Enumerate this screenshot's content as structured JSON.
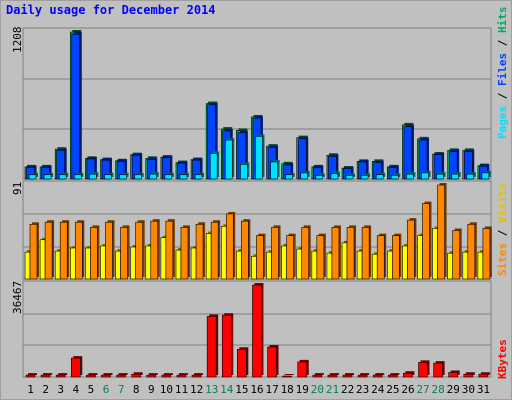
{
  "title": "Daily usage for December 2014",
  "colors": {
    "pages": "#0044ff",
    "files": "#00e0ff",
    "hits": "#00a860",
    "visits": "#ffff00",
    "sites": "#ff8800",
    "kbytes": "#ff0000",
    "weekend_day": "#00805c",
    "weekday": "#000000"
  },
  "chart_data": [
    {
      "type": "bar",
      "name_row": "hits-pages-files",
      "ymax_label": "1208",
      "ylim": [
        0,
        1208
      ],
      "legend": {
        "pages": "Pages",
        "sep1": " / ",
        "files": "Files",
        "sep2": " / ",
        "hits": "Hits"
      },
      "categories": [
        "1",
        "2",
        "3",
        "4",
        "5",
        "6",
        "7",
        "8",
        "9",
        "10",
        "11",
        "12",
        "13",
        "14",
        "15",
        "16",
        "17",
        "18",
        "19",
        "20",
        "21",
        "22",
        "23",
        "24",
        "25",
        "26",
        "27",
        "28",
        "29",
        "30",
        "31"
      ],
      "series": [
        {
          "key": "hits",
          "values": [
            100,
            100,
            245,
            1208,
            170,
            160,
            150,
            200,
            170,
            180,
            135,
            160,
            620,
            410,
            400,
            510,
            270,
            125,
            340,
            100,
            195,
            90,
            145,
            145,
            100,
            445,
            330,
            205,
            235,
            235,
            110
          ]
        },
        {
          "key": "pages",
          "values": [
            95,
            95,
            235,
            1190,
            165,
            155,
            145,
            195,
            160,
            175,
            130,
            155,
            610,
            395,
            380,
            500,
            260,
            115,
            330,
            95,
            185,
            85,
            140,
            135,
            95,
            430,
            320,
            200,
            225,
            225,
            105
          ]
        },
        {
          "key": "files",
          "values": [
            35,
            35,
            35,
            35,
            40,
            35,
            35,
            35,
            40,
            35,
            35,
            35,
            210,
            320,
            120,
            350,
            140,
            35,
            50,
            30,
            45,
            30,
            30,
            35,
            30,
            40,
            50,
            40,
            40,
            40,
            50
          ]
        }
      ]
    },
    {
      "type": "bar",
      "name_row": "visits-sites",
      "ymax_label": "91",
      "ylim": [
        0,
        91
      ],
      "legend": {
        "sites": "Sites",
        "sep1": " / ",
        "visits": "Visits"
      },
      "categories": [
        "1",
        "2",
        "3",
        "4",
        "5",
        "6",
        "7",
        "8",
        "9",
        "10",
        "11",
        "12",
        "13",
        "14",
        "15",
        "16",
        "17",
        "18",
        "19",
        "20",
        "21",
        "22",
        "23",
        "24",
        "25",
        "26",
        "27",
        "28",
        "29",
        "30",
        "31"
      ],
      "series": [
        {
          "key": "visits",
          "values": [
            26,
            38,
            27,
            30,
            30,
            32,
            27,
            31,
            32,
            40,
            28,
            30,
            44,
            51,
            27,
            22,
            26,
            32,
            29,
            27,
            25,
            35,
            27,
            24,
            27,
            32,
            42,
            49,
            25,
            26,
            26
          ]
        },
        {
          "key": "sites",
          "values": [
            53,
            55,
            55,
            55,
            50,
            55,
            50,
            55,
            56,
            56,
            50,
            53,
            55,
            63,
            56,
            42,
            50,
            42,
            50,
            42,
            50,
            50,
            50,
            42,
            42,
            57,
            73,
            91,
            47,
            53,
            49
          ]
        }
      ]
    },
    {
      "type": "bar",
      "name_row": "kbytes",
      "ymax_label": "36467",
      "ylim": [
        0,
        36467
      ],
      "legend": {
        "kbytes": "KBytes"
      },
      "categories": [
        "1",
        "2",
        "3",
        "4",
        "5",
        "6",
        "7",
        "8",
        "9",
        "10",
        "11",
        "12",
        "13",
        "14",
        "15",
        "16",
        "17",
        "18",
        "19",
        "20",
        "21",
        "22",
        "23",
        "24",
        "25",
        "26",
        "27",
        "28",
        "29",
        "30",
        "31"
      ],
      "series": [
        {
          "key": "kbytes",
          "values": [
            750,
            750,
            750,
            7500,
            750,
            750,
            750,
            1100,
            750,
            750,
            750,
            750,
            24000,
            24500,
            11000,
            36467,
            11900,
            300,
            6000,
            750,
            750,
            750,
            750,
            750,
            750,
            1500,
            5800,
            5500,
            1800,
            1100,
            1100
          ]
        }
      ]
    }
  ],
  "days": [
    {
      "label": "1",
      "weekend": false
    },
    {
      "label": "2",
      "weekend": false
    },
    {
      "label": "3",
      "weekend": false
    },
    {
      "label": "4",
      "weekend": false
    },
    {
      "label": "5",
      "weekend": false
    },
    {
      "label": "6",
      "weekend": true
    },
    {
      "label": "7",
      "weekend": true
    },
    {
      "label": "8",
      "weekend": false
    },
    {
      "label": "9",
      "weekend": false
    },
    {
      "label": "10",
      "weekend": false
    },
    {
      "label": "11",
      "weekend": false
    },
    {
      "label": "12",
      "weekend": false
    },
    {
      "label": "13",
      "weekend": true
    },
    {
      "label": "14",
      "weekend": true
    },
    {
      "label": "15",
      "weekend": false
    },
    {
      "label": "16",
      "weekend": false
    },
    {
      "label": "17",
      "weekend": false
    },
    {
      "label": "18",
      "weekend": false
    },
    {
      "label": "19",
      "weekend": false
    },
    {
      "label": "20",
      "weekend": true
    },
    {
      "label": "21",
      "weekend": true
    },
    {
      "label": "22",
      "weekend": false
    },
    {
      "label": "23",
      "weekend": false
    },
    {
      "label": "24",
      "weekend": false
    },
    {
      "label": "25",
      "weekend": false
    },
    {
      "label": "26",
      "weekend": false
    },
    {
      "label": "27",
      "weekend": true
    },
    {
      "label": "28",
      "weekend": true
    },
    {
      "label": "29",
      "weekend": false
    },
    {
      "label": "30",
      "weekend": false
    },
    {
      "label": "31",
      "weekend": false
    }
  ]
}
